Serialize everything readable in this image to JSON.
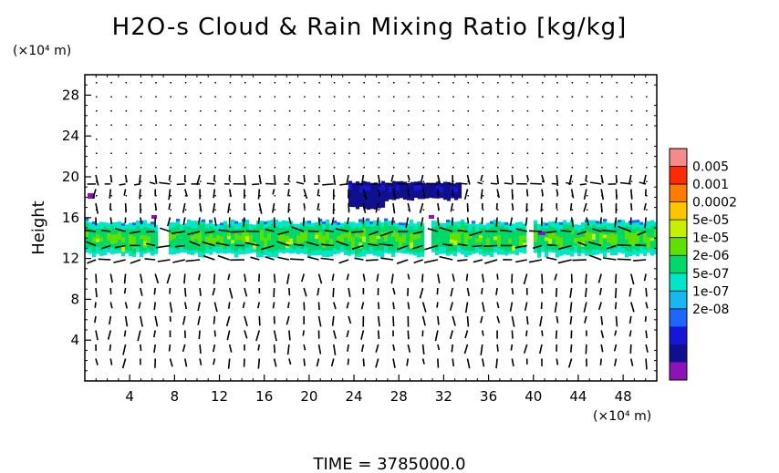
{
  "title": "H2O-s Cloud & Rain Mixing Ratio [kg/kg]",
  "chart_data": {
    "type": "heatmap",
    "title": "H2O-s Cloud & Rain Mixing Ratio [kg/kg]",
    "xlabel": "",
    "ylabel": "Height",
    "x_unit": "(×10⁴ m)",
    "y_unit": "(×10⁴ m)",
    "xlim": [
      0,
      51
    ],
    "ylim": [
      0,
      30
    ],
    "xticks": [
      4,
      8,
      12,
      16,
      20,
      24,
      28,
      32,
      36,
      40,
      44,
      48
    ],
    "yticks": [
      4,
      8,
      12,
      16,
      20,
      24,
      28
    ],
    "colorbar": {
      "labels": [
        "0.005",
        "0.001",
        "0.0002",
        "5e-05",
        "1e-05",
        "2e-06",
        "5e-07",
        "1e-07",
        "2e-08"
      ],
      "colors": [
        "#f48a8a",
        "#ff2a00",
        "#ff7b00",
        "#ffc400",
        "#c8ee00",
        "#5fe000",
        "#00d96a",
        "#00e6c8",
        "#19b7f0",
        "#1f66ff",
        "#1616d8",
        "#10108f",
        "#8e12b8"
      ]
    },
    "features": [
      {
        "name": "main cloud layer",
        "x": [
          0,
          51
        ],
        "y": [
          12,
          16
        ]
      },
      {
        "name": "upper cloud patch",
        "x": [
          23.5,
          33.5
        ],
        "y": [
          17.5,
          19.5
        ]
      }
    ],
    "grid": false,
    "legend": "right colorbar"
  },
  "footer": {
    "time_text": "TIME =  3785000.0"
  }
}
